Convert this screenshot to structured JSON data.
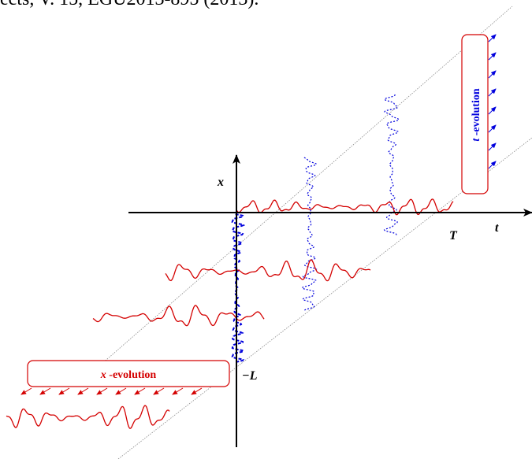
{
  "header_fragment": "ects, V. 15, EGU2013-895 (2013).",
  "labels": {
    "x_axis": "x",
    "t_axis": "t",
    "T_marker": "T",
    "L_marker": "−L"
  },
  "boxes": {
    "t_evolution": {
      "italic": "t",
      "rest": " -evolution"
    },
    "x_evolution": {
      "italic": "x",
      "rest": " -evolution"
    }
  },
  "colors": {
    "red_wave": "#d40000",
    "blue_wave": "#0000dd",
    "axis": "#000000",
    "guide": "#888888"
  }
}
